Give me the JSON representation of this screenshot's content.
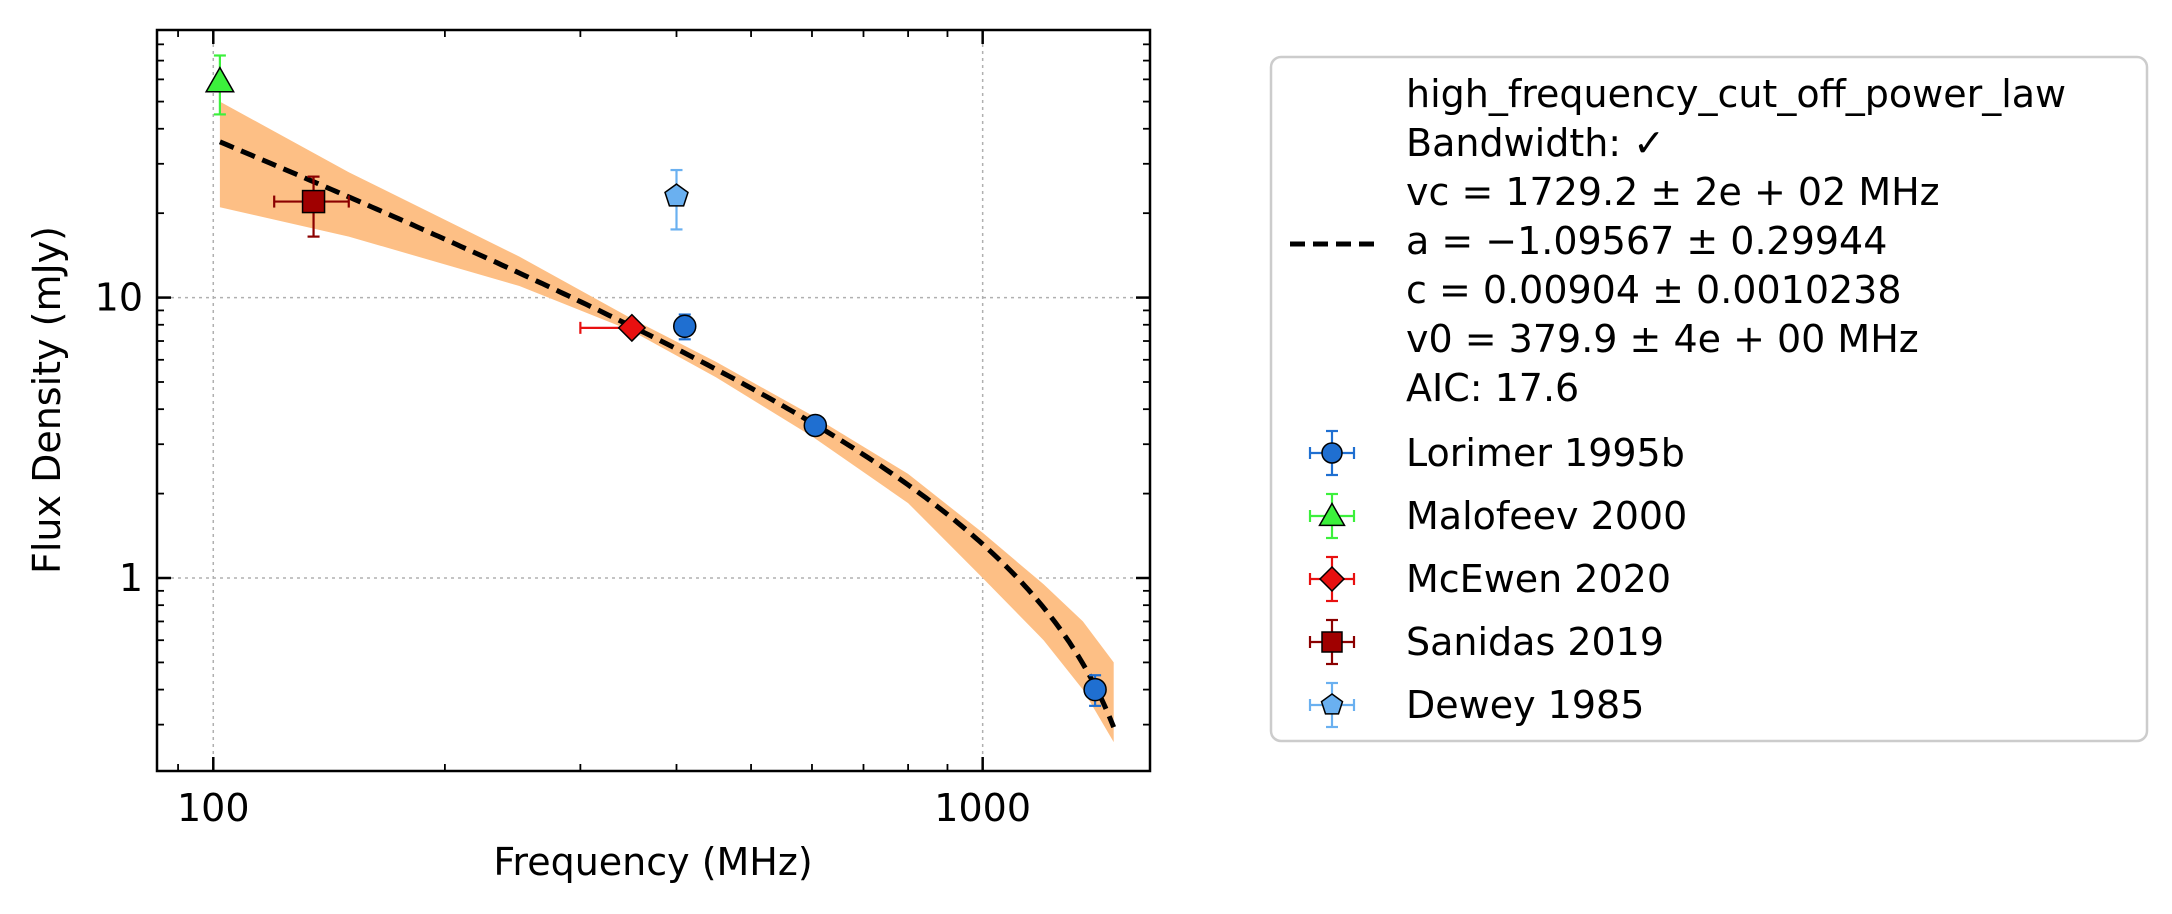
{
  "chart_data": {
    "type": "scatter",
    "title": "",
    "xlabel": "Frequency (MHz)",
    "ylabel": "Flux Density (mJy)",
    "xscale": "log",
    "yscale": "log",
    "xlim": [
      84.5,
      1650
    ],
    "ylim": [
      0.205,
      90
    ],
    "x_ticks": [
      {
        "value": 100,
        "label": "100"
      },
      {
        "value": 1000,
        "label": "1000"
      }
    ],
    "y_ticks": [
      {
        "value": 1,
        "label": "1"
      },
      {
        "value": 10,
        "label": "10"
      }
    ],
    "grid": true,
    "legend_placement": "outside-right",
    "model": {
      "name": "high_frequency_cut_off_power_law",
      "bandwidth_label": "Bandwidth: ✓",
      "params": [
        "vc = 1729.2 ± 2e + 02 MHz",
        "a = −1.09567 ± 0.29944",
        "c = 0.00904 ± 0.0010238",
        "v0 = 379.9 ± 4e + 00 MHz"
      ],
      "aic_label": "AIC: 17.6",
      "vc": 1729.2,
      "a": -1.09567,
      "c": 0.00904,
      "v0": 379.9,
      "freq_range": [
        102,
        1480
      ],
      "line_color": "#000000",
      "band_color": "#fdbf85",
      "band": [
        {
          "x": 102,
          "lower": 21,
          "upper": 50
        },
        {
          "x": 150,
          "lower": 16.5,
          "upper": 28
        },
        {
          "x": 250,
          "lower": 11,
          "upper": 14
        },
        {
          "x": 350,
          "lower": 7.6,
          "upper": 8.4
        },
        {
          "x": 450,
          "lower": 5.2,
          "upper": 5.9
        },
        {
          "x": 600,
          "lower": 3.2,
          "upper": 3.8
        },
        {
          "x": 800,
          "lower": 1.85,
          "upper": 2.35
        },
        {
          "x": 1000,
          "lower": 1.0,
          "upper": 1.45
        },
        {
          "x": 1200,
          "lower": 0.6,
          "upper": 0.95
        },
        {
          "x": 1350,
          "lower": 0.4,
          "upper": 0.7
        },
        {
          "x": 1480,
          "lower": 0.26,
          "upper": 0.5
        }
      ]
    },
    "series": [
      {
        "name": "Lorimer 1995b",
        "marker": "circle",
        "color": "#1f6fd1",
        "ecolor": "#1f6fd1",
        "points": [
          {
            "x": 410,
            "y": 7.9,
            "yerr": [
              0.8,
              0.8
            ],
            "xerr": [
              0,
              0
            ]
          },
          {
            "x": 606,
            "y": 3.5,
            "yerr": [
              0.15,
              0.15
            ],
            "xerr": [
              0,
              0
            ]
          },
          {
            "x": 1400,
            "y": 0.4,
            "yerr": [
              0.05,
              0.05
            ],
            "xerr": [
              0,
              0
            ]
          }
        ]
      },
      {
        "name": "Malofeev 2000",
        "marker": "triangle",
        "color": "#3cf03c",
        "ecolor": "#3cf03c",
        "points": [
          {
            "x": 102,
            "y": 59,
            "yerr": [
              14,
              14
            ],
            "xerr": [
              0,
              0
            ]
          }
        ]
      },
      {
        "name": "McEwen 2020",
        "marker": "diamond",
        "color": "#e81010",
        "ecolor": "#e81010",
        "points": [
          {
            "x": 350,
            "y": 7.8,
            "yerr": [
              0.4,
              0.4
            ],
            "xerr": [
              50,
              0
            ]
          }
        ]
      },
      {
        "name": "Sanidas 2019",
        "marker": "square",
        "color": "#a00000",
        "ecolor": "#8b0000",
        "points": [
          {
            "x": 135,
            "y": 22,
            "yerr": [
              5.5,
              5
            ],
            "xerr": [
              15,
              15
            ]
          }
        ]
      },
      {
        "name": "Dewey 1985",
        "marker": "pentagon",
        "color": "#6ab0f0",
        "ecolor": "#6ab0f0",
        "points": [
          {
            "x": 400,
            "y": 23,
            "yerr": [
              5.5,
              5.5
            ],
            "xerr": [
              0,
              0
            ]
          }
        ]
      }
    ]
  }
}
